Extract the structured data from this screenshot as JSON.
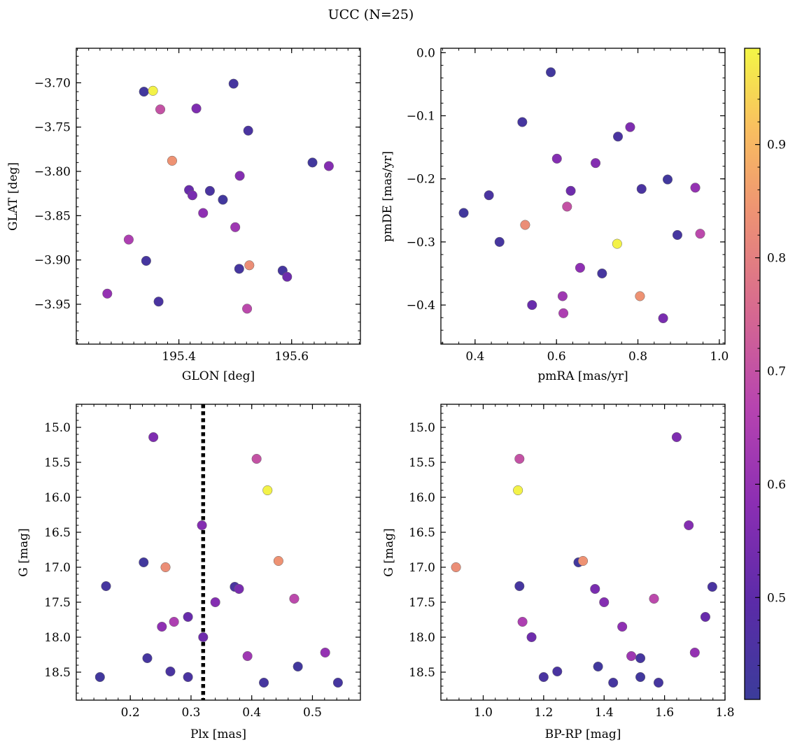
{
  "chart_data": {
    "type": "scatter",
    "title": "UCC (N=25)",
    "colormap": "plasma",
    "colorbar": {
      "range": [
        0.41,
        0.985
      ],
      "ticks": [
        0.5,
        0.6,
        0.7,
        0.8,
        0.9
      ],
      "tick_labels": [
        "0.5",
        "0.6",
        "0.7",
        "0.8",
        "0.9"
      ]
    },
    "colors": {
      "vline": "#000000",
      "marker_edge": "#666666",
      "axis": "#000000"
    },
    "panels": [
      {
        "id": "glon-glat",
        "xlabel": "GLON [deg]",
        "ylabel": "GLAT [deg]",
        "xlim": [
          195.218,
          195.722
        ],
        "ylim": [
          -3.995,
          -3.661
        ],
        "y_inverted": false,
        "xticks": [
          195.4,
          195.6
        ],
        "xtick_labels": [
          "195.4",
          "195.6"
        ],
        "yticks": [
          -3.7,
          -3.75,
          -3.8,
          -3.85,
          -3.9,
          -3.95
        ],
        "ytick_labels": [
          "−3.70",
          "−3.75",
          "−3.80",
          "−3.85",
          "−3.90",
          "−3.95"
        ],
        "minor_x_step": 0.02,
        "minor_y_step": 0.01
      },
      {
        "id": "pm",
        "xlabel": "pmRA [mas/yr]",
        "ylabel": "pmDE [mas/yr]",
        "xlim": [
          0.316,
          1.014
        ],
        "ylim": [
          -0.462,
          0.007
        ],
        "y_inverted": false,
        "xticks": [
          0.4,
          0.6,
          0.8,
          1.0
        ],
        "xtick_labels": [
          "0.4",
          "0.6",
          "0.8",
          "1.0"
        ],
        "yticks": [
          0.0,
          -0.1,
          -0.2,
          -0.3,
          -0.4
        ],
        "ytick_labels": [
          "0.0",
          "−0.1",
          "−0.2",
          "−0.3",
          "−0.4"
        ],
        "minor_x_step": 0.04,
        "minor_y_step": 0.02
      },
      {
        "id": "plx-g",
        "xlabel": "Plx [mas]",
        "ylabel": "G [mag]",
        "xlim": [
          0.111,
          0.579
        ],
        "ylim": [
          18.9,
          14.67
        ],
        "y_inverted": true,
        "xticks": [
          0.2,
          0.3,
          0.4,
          0.5
        ],
        "xtick_labels": [
          "0.2",
          "0.3",
          "0.4",
          "0.5"
        ],
        "yticks": [
          15.0,
          15.5,
          16.0,
          16.5,
          17.0,
          17.5,
          18.0,
          18.5
        ],
        "ytick_labels": [
          "15.0",
          "15.5",
          "16.0",
          "16.5",
          "17.0",
          "17.5",
          "18.0",
          "18.5"
        ],
        "minor_x_step": 0.02,
        "minor_y_step": 0.1,
        "vline": {
          "x": 0.32,
          "style": "dotted"
        }
      },
      {
        "id": "cmd",
        "xlabel": "BP-RP [mag]",
        "ylabel": "G [mag]",
        "xlim": [
          0.86,
          1.8
        ],
        "ylim": [
          18.9,
          14.67
        ],
        "y_inverted": true,
        "xticks": [
          1.0,
          1.2,
          1.4,
          1.6,
          1.8
        ],
        "xtick_labels": [
          "1.0",
          "1.2",
          "1.4",
          "1.6",
          "1.8"
        ],
        "yticks": [
          15.0,
          15.5,
          16.0,
          16.5,
          17.0,
          17.5,
          18.0,
          18.5
        ],
        "ytick_labels": [
          "15.0",
          "15.5",
          "16.0",
          "16.5",
          "17.0",
          "17.5",
          "18.0",
          "18.5"
        ],
        "minor_x_step": 0.04,
        "minor_y_step": 0.1
      }
    ],
    "stars": [
      {
        "glon": 195.338,
        "glat": -3.71,
        "pmra": 0.586,
        "pmde": -0.031,
        "plx": 0.476,
        "g": 18.42,
        "bprp": 1.38,
        "prob": 0.43
      },
      {
        "glon": 195.354,
        "glat": -3.709,
        "pmra": 0.749,
        "pmde": -0.303,
        "plx": 0.426,
        "g": 15.9,
        "bprp": 1.115,
        "prob": 0.98
      },
      {
        "glon": 195.367,
        "glat": -3.73,
        "pmra": 0.626,
        "pmde": -0.244,
        "plx": 0.408,
        "g": 15.45,
        "bprp": 1.12,
        "prob": 0.7
      },
      {
        "glon": 195.431,
        "glat": -3.729,
        "pmra": 0.781,
        "pmde": -0.118,
        "plx": 0.238,
        "g": 15.14,
        "bprp": 1.64,
        "prob": 0.56
      },
      {
        "glon": 195.497,
        "glat": -3.701,
        "pmra": 0.516,
        "pmde": -0.11,
        "plx": 0.16,
        "g": 17.27,
        "bprp": 1.12,
        "prob": 0.44
      },
      {
        "glon": 195.523,
        "glat": -3.754,
        "pmra": 0.751,
        "pmde": -0.133,
        "plx": 0.372,
        "g": 17.28,
        "bprp": 1.758,
        "prob": 0.45
      },
      {
        "glon": 195.388,
        "glat": -3.788,
        "pmra": 0.805,
        "pmde": -0.386,
        "plx": 0.444,
        "g": 16.91,
        "bprp": 1.33,
        "prob": 0.84
      },
      {
        "glon": 195.637,
        "glat": -3.79,
        "pmra": 0.873,
        "pmde": -0.201,
        "plx": 0.222,
        "g": 16.93,
        "bprp": 1.315,
        "prob": 0.43
      },
      {
        "glon": 195.666,
        "glat": -3.794,
        "pmra": 0.601,
        "pmde": -0.168,
        "plx": 0.318,
        "g": 16.4,
        "bprp": 1.68,
        "prob": 0.57
      },
      {
        "glon": 195.508,
        "glat": -3.805,
        "pmra": 0.696,
        "pmde": -0.175,
        "plx": 0.34,
        "g": 17.5,
        "bprp": 1.4,
        "prob": 0.57
      },
      {
        "glon": 195.418,
        "glat": -3.821,
        "pmra": 0.54,
        "pmde": -0.4,
        "plx": 0.295,
        "g": 17.71,
        "bprp": 1.735,
        "prob": 0.52
      },
      {
        "glon": 195.455,
        "glat": -3.822,
        "pmra": 0.434,
        "pmde": -0.226,
        "plx": 0.295,
        "g": 18.57,
        "bprp": 1.2,
        "prob": 0.45
      },
      {
        "glon": 195.424,
        "glat": -3.827,
        "pmra": 0.862,
        "pmde": -0.421,
        "plx": 0.379,
        "g": 17.31,
        "bprp": 1.37,
        "prob": 0.55
      },
      {
        "glon": 195.478,
        "glat": -3.832,
        "pmra": 0.372,
        "pmde": -0.254,
        "plx": 0.15,
        "g": 18.57,
        "bprp": 1.52,
        "prob": 0.43
      },
      {
        "glon": 195.443,
        "glat": -3.847,
        "pmra": 0.658,
        "pmde": -0.341,
        "plx": 0.252,
        "g": 17.85,
        "bprp": 1.46,
        "prob": 0.59
      },
      {
        "glon": 195.5,
        "glat": -3.863,
        "pmra": 0.615,
        "pmde": -0.386,
        "plx": 0.393,
        "g": 18.27,
        "bprp": 1.49,
        "prob": 0.62
      },
      {
        "glon": 195.311,
        "glat": -3.877,
        "pmra": 0.617,
        "pmde": -0.413,
        "plx": 0.272,
        "g": 17.78,
        "bprp": 1.13,
        "prob": 0.65
      },
      {
        "glon": 195.342,
        "glat": -3.901,
        "pmra": 0.46,
        "pmde": -0.3,
        "plx": 0.228,
        "g": 18.3,
        "bprp": 1.52,
        "prob": 0.44
      },
      {
        "glon": 195.525,
        "glat": -3.906,
        "pmra": 0.523,
        "pmde": -0.273,
        "plx": 0.258,
        "g": 17.0,
        "bprp": 0.91,
        "prob": 0.83
      },
      {
        "glon": 195.507,
        "glat": -3.91,
        "pmra": 0.897,
        "pmde": -0.289,
        "plx": 0.542,
        "g": 18.65,
        "bprp": 1.58,
        "prob": 0.44
      },
      {
        "glon": 195.584,
        "glat": -3.912,
        "pmra": 0.712,
        "pmde": -0.35,
        "plx": 0.42,
        "g": 18.65,
        "bprp": 1.43,
        "prob": 0.44
      },
      {
        "glon": 195.592,
        "glat": -3.919,
        "pmra": 0.635,
        "pmde": -0.219,
        "plx": 0.32,
        "g": 18.0,
        "bprp": 1.16,
        "prob": 0.53
      },
      {
        "glon": 195.273,
        "glat": -3.938,
        "pmra": 0.941,
        "pmde": -0.214,
        "plx": 0.521,
        "g": 18.22,
        "bprp": 1.7,
        "prob": 0.6
      },
      {
        "glon": 195.364,
        "glat": -3.947,
        "pmra": 0.809,
        "pmde": -0.216,
        "plx": 0.266,
        "g": 18.49,
        "bprp": 1.245,
        "prob": 0.45
      },
      {
        "glon": 195.521,
        "glat": -3.955,
        "pmra": 0.953,
        "pmde": -0.287,
        "plx": 0.47,
        "g": 17.45,
        "bprp": 1.565,
        "prob": 0.68
      }
    ]
  }
}
